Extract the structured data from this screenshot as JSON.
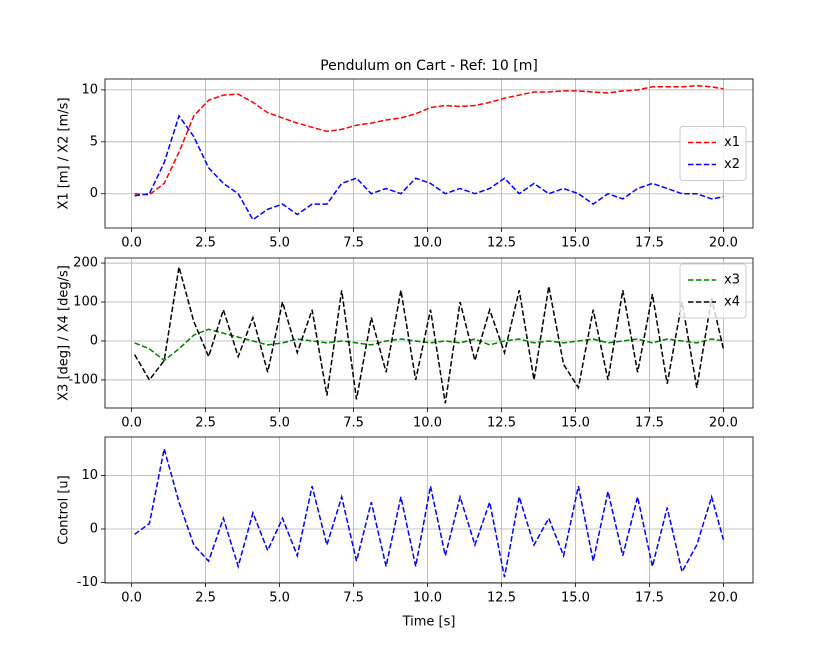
{
  "chart_data": [
    {
      "type": "line",
      "title": "Pendulum on Cart - Ref: 10 [m]",
      "y_label": "X1 [m] / X2 [m/s]",
      "x": [
        0.1,
        0.6,
        1.1,
        1.6,
        2.1,
        2.6,
        3.1,
        3.6,
        4.1,
        4.6,
        5.1,
        5.6,
        6.1,
        6.6,
        7.1,
        7.6,
        8.1,
        8.6,
        9.1,
        9.6,
        10.1,
        10.6,
        11.1,
        11.6,
        12.1,
        12.6,
        13.1,
        13.6,
        14.1,
        14.6,
        15.1,
        15.6,
        16.1,
        16.6,
        17.1,
        17.6,
        18.1,
        18.6,
        19.1,
        19.6,
        20.0
      ],
      "series": [
        {
          "name": "x1",
          "color": "#ff0000",
          "values": [
            0,
            -0.1,
            1,
            4,
            7.5,
            9,
            9.5,
            9.6,
            8.8,
            7.8,
            7.3,
            6.8,
            6.4,
            6.0,
            6.2,
            6.6,
            6.8,
            7.1,
            7.3,
            7.7,
            8.3,
            8.5,
            8.4,
            8.5,
            8.8,
            9.2,
            9.5,
            9.8,
            9.8,
            9.9,
            9.9,
            9.8,
            9.7,
            9.9,
            10.0,
            10.3,
            10.3,
            10.3,
            10.4,
            10.3,
            10.1
          ]
        },
        {
          "name": "x2",
          "color": "#0000ff",
          "values": [
            -0.2,
            0,
            3,
            7.5,
            5.5,
            2.5,
            1,
            0,
            -2.5,
            -1.5,
            -1,
            -2,
            -1,
            -1,
            1,
            1.5,
            0,
            0.5,
            0,
            1.5,
            1,
            0,
            0.5,
            0,
            0.5,
            1.5,
            0,
            1,
            0,
            0.5,
            0,
            -1,
            0,
            -0.5,
            0.5,
            1,
            0.5,
            0,
            0,
            -0.5,
            -0.3
          ]
        }
      ],
      "xlim": [
        -0.9,
        21.0
      ],
      "ylim": [
        -3.3,
        11.05
      ],
      "xticks": [
        {
          "value": 0,
          "label": "0.0"
        },
        {
          "value": 2.5,
          "label": "2.5"
        },
        {
          "value": 5,
          "label": "5.0"
        },
        {
          "value": 7.5,
          "label": "7.5"
        },
        {
          "value": 10,
          "label": "10.0"
        },
        {
          "value": 12.5,
          "label": "12.5"
        },
        {
          "value": 15,
          "label": "15.0"
        },
        {
          "value": 17.5,
          "label": "17.5"
        },
        {
          "value": 20,
          "label": "20.0"
        }
      ],
      "yticks": [
        0,
        5,
        10
      ],
      "grid": true,
      "legend": "center right",
      "line_style": "dashed"
    },
    {
      "type": "line",
      "y_label": "X3 [deg] / X4 [deg/s]",
      "x": [
        0.1,
        0.6,
        1.1,
        1.6,
        2.1,
        2.6,
        3.1,
        3.6,
        4.1,
        4.6,
        5.1,
        5.6,
        6.1,
        6.6,
        7.1,
        7.6,
        8.1,
        8.6,
        9.1,
        9.6,
        10.1,
        10.6,
        11.1,
        11.6,
        12.1,
        12.6,
        13.1,
        13.6,
        14.1,
        14.6,
        15.1,
        15.6,
        16.1,
        16.6,
        17.1,
        17.6,
        18.1,
        18.6,
        19.1,
        19.6,
        20.0
      ],
      "series": [
        {
          "name": "x3",
          "color": "#008000",
          "values": [
            -5,
            -20,
            -50,
            -20,
            15,
            30,
            20,
            10,
            0,
            -10,
            -5,
            5,
            0,
            -5,
            0,
            -5,
            -10,
            0,
            5,
            0,
            -5,
            0,
            -5,
            5,
            -10,
            0,
            5,
            -5,
            0,
            -5,
            0,
            5,
            -5,
            0,
            5,
            -5,
            5,
            0,
            -5,
            5,
            0
          ]
        },
        {
          "name": "x4",
          "color": "#000000",
          "values": [
            -35,
            -100,
            -50,
            190,
            50,
            -40,
            80,
            -40,
            60,
            -80,
            100,
            -30,
            80,
            -140,
            130,
            -150,
            60,
            -80,
            130,
            -100,
            80,
            -160,
            100,
            -50,
            80,
            -30,
            130,
            -100,
            140,
            -60,
            -120,
            80,
            -100,
            130,
            -80,
            120,
            -110,
            100,
            -120,
            110,
            -20
          ]
        }
      ],
      "xlim": [
        -0.9,
        21.0
      ],
      "ylim": [
        -172,
        213
      ],
      "xticks": [
        {
          "value": 0,
          "label": "0.0"
        },
        {
          "value": 2.5,
          "label": "2.5"
        },
        {
          "value": 5,
          "label": "5.0"
        },
        {
          "value": 7.5,
          "label": "7.5"
        },
        {
          "value": 10,
          "label": "10.0"
        },
        {
          "value": 12.5,
          "label": "12.5"
        },
        {
          "value": 15,
          "label": "15.0"
        },
        {
          "value": 17.5,
          "label": "17.5"
        },
        {
          "value": 20,
          "label": "20.0"
        }
      ],
      "yticks": [
        -100,
        0,
        100,
        200
      ],
      "grid": true,
      "legend": "upper right",
      "line_style": "dashed"
    },
    {
      "type": "line",
      "y_label": "Control [u]",
      "x_label": "Time [s]",
      "x": [
        0.1,
        0.6,
        1.1,
        1.6,
        2.1,
        2.6,
        3.1,
        3.6,
        4.1,
        4.6,
        5.1,
        5.6,
        6.1,
        6.6,
        7.1,
        7.6,
        8.1,
        8.6,
        9.1,
        9.6,
        10.1,
        10.6,
        11.1,
        11.6,
        12.1,
        12.6,
        13.1,
        13.6,
        14.1,
        14.6,
        15.1,
        15.6,
        16.1,
        16.6,
        17.1,
        17.6,
        18.1,
        18.6,
        19.1,
        19.6,
        20.0
      ],
      "series": [
        {
          "color": "#0000ff",
          "values": [
            -1,
            1,
            15,
            5,
            -3,
            -6,
            2,
            -7,
            3,
            -4,
            2,
            -5,
            8,
            -3,
            6,
            -6,
            5,
            -7,
            6,
            -7,
            8,
            -5,
            6,
            -3,
            5,
            -9,
            6,
            -3,
            2,
            -5,
            8,
            -6,
            7,
            -5,
            6,
            -7,
            4,
            -8,
            -3,
            6,
            -2
          ]
        }
      ],
      "xlim": [
        -0.9,
        21.0
      ],
      "ylim": [
        -10.1,
        17.2
      ],
      "xticks": [
        {
          "value": 0,
          "label": "0.0"
        },
        {
          "value": 2.5,
          "label": "2.5"
        },
        {
          "value": 5,
          "label": "5.0"
        },
        {
          "value": 7.5,
          "label": "7.5"
        },
        {
          "value": 10,
          "label": "10.0"
        },
        {
          "value": 12.5,
          "label": "12.5"
        },
        {
          "value": 15,
          "label": "15.0"
        },
        {
          "value": 17.5,
          "label": "17.5"
        },
        {
          "value": 20,
          "label": "20.0"
        }
      ],
      "yticks": [
        -10,
        0,
        10
      ],
      "grid": true,
      "line_style": "dashed"
    }
  ]
}
